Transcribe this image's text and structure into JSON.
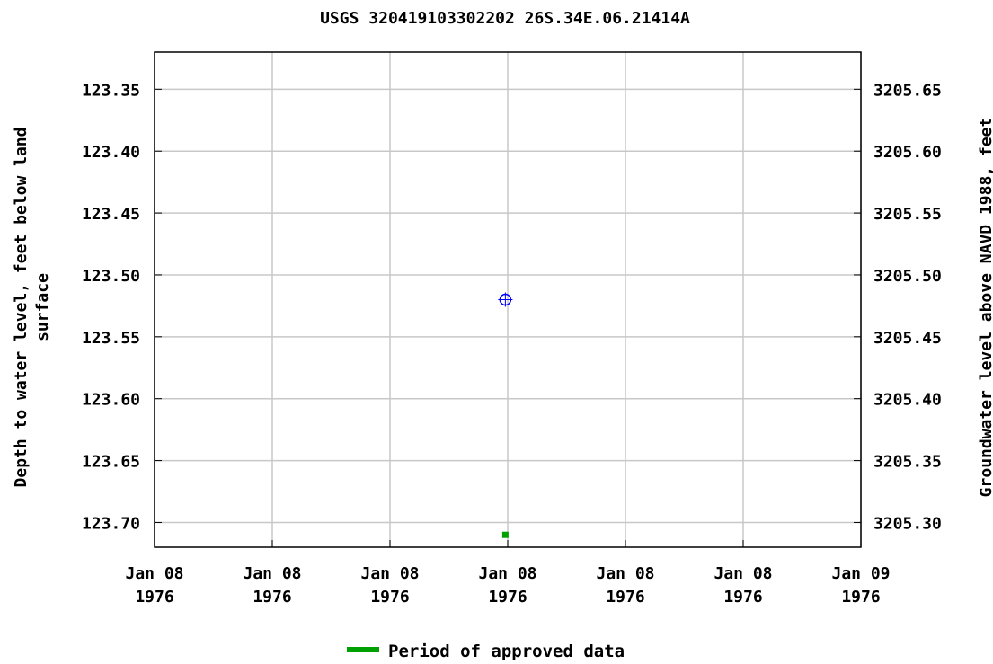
{
  "chart_data": {
    "type": "scatter",
    "title": "USGS 320419103302202 26S.34E.06.21414A",
    "ylabel_left": "Depth to water level, feet below land surface",
    "ylabel_left_lines": [
      "Depth to water level, feet below land",
      "surface"
    ],
    "ylabel_right": "Groundwater level above NAVD 1988, feet",
    "ylim_left": [
      123.32,
      123.72
    ],
    "ylim_right": [
      3205.68,
      3205.28
    ],
    "left_ticks": [
      "123.35",
      "123.40",
      "123.45",
      "123.50",
      "123.55",
      "123.60",
      "123.65",
      "123.70"
    ],
    "right_ticks": [
      "3205.65",
      "3205.60",
      "3205.55",
      "3205.50",
      "3205.45",
      "3205.40",
      "3205.35",
      "3205.30"
    ],
    "x_ticks": [
      [
        "Jan 08",
        "1976"
      ],
      [
        "Jan 08",
        "1976"
      ],
      [
        "Jan 08",
        "1976"
      ],
      [
        "Jan 08",
        "1976"
      ],
      [
        "Jan 08",
        "1976"
      ],
      [
        "Jan 08",
        "1976"
      ],
      [
        "Jan 09",
        "1976"
      ]
    ],
    "points": [
      {
        "x_tick_pos": 2.98,
        "depth": 123.52,
        "marker": "circle",
        "color": "#0000ff"
      }
    ],
    "approved_marks": [
      {
        "x_tick_pos": 2.98,
        "depth": 123.71,
        "color": "#00a000"
      }
    ],
    "grid": true,
    "grid_color": "#c8c8c8",
    "legend": {
      "label": "Period of approved data",
      "color": "#00a000",
      "placement": "bottom-center"
    }
  }
}
